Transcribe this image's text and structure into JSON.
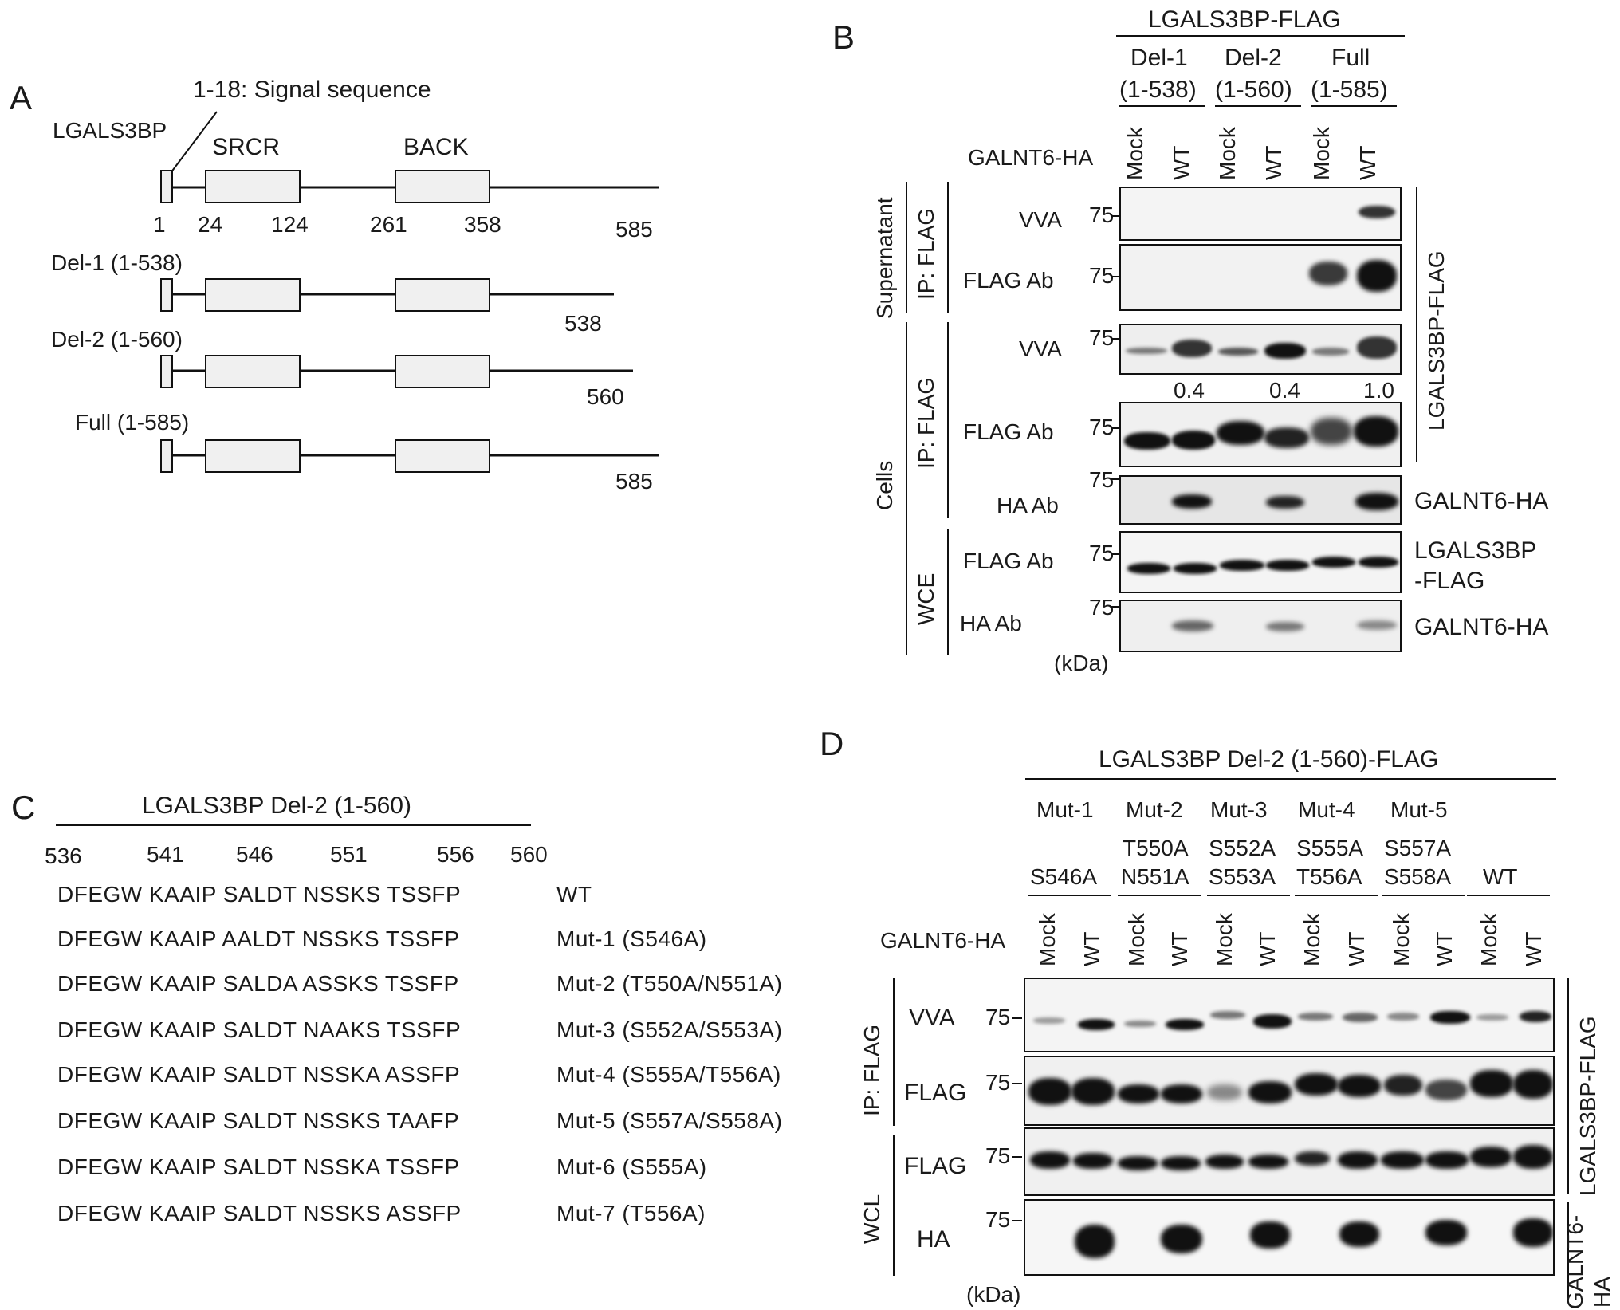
{
  "panelA": {
    "letter": "A",
    "protein": "LGALS3BP",
    "signal": "1-18: Signal sequence",
    "domain1": "SRCR",
    "domain2": "BACK",
    "pos": [
      "1",
      "24",
      "124",
      "261",
      "358",
      "585"
    ],
    "constructs": [
      {
        "label": "Del-1 (1-538)",
        "end": "538"
      },
      {
        "label": "Del-2 (1-560)",
        "end": "560"
      },
      {
        "label": "Full (1-585)",
        "end": "585"
      }
    ]
  },
  "panelB": {
    "letter": "B",
    "header": "LGALS3BP-FLAG",
    "groups": [
      {
        "name": "Del-1",
        "range": "(1-538)"
      },
      {
        "name": "Del-2",
        "range": "(1-560)"
      },
      {
        "name": "Full",
        "range": "(1-585)"
      }
    ],
    "galnt": "GALNT6-HA",
    "lanes": [
      "Mock",
      "WT",
      "Mock",
      "WT",
      "Mock",
      "WT"
    ],
    "supernatant": "Supernatant",
    "cells": "Cells",
    "ip": "IP: FLAG",
    "wce": "WCE",
    "rows": [
      "VVA",
      "FLAG Ab",
      "VVA",
      "FLAG Ab",
      "HA Ab",
      "FLAG Ab",
      "HA Ab"
    ],
    "mw": "75",
    "quant": [
      "0.4",
      "0.4",
      "1.0"
    ],
    "right": {
      "lgals_flag": "LGALS3BP-FLAG",
      "galnt_ha1": "GALNT6-HA",
      "lgals_wce_1": "LGALS3BP",
      "lgals_wce_2": "-FLAG",
      "galnt_ha2": "GALNT6-HA"
    },
    "kda": "(kDa)"
  },
  "panelC": {
    "letter": "C",
    "header": "LGALS3BP Del-2 (1-560)",
    "positions": [
      "536",
      "541",
      "546",
      "551",
      "556",
      "560"
    ],
    "rows": [
      {
        "seq": "DFEGW KAAIP SALDT NSSKS TSSFP",
        "label": "WT"
      },
      {
        "seq": "DFEGW KAAIP AALDT NSSKS TSSFP",
        "label": "Mut-1 (S546A)"
      },
      {
        "seq": "DFEGW KAAIP SALDA ASSKS TSSFP",
        "label": "Mut-2 (T550A/N551A)"
      },
      {
        "seq": "DFEGW KAAIP SALDT NAAKS TSSFP",
        "label": "Mut-3 (S552A/S553A)"
      },
      {
        "seq": "DFEGW KAAIP SALDT NSSKA ASSFP",
        "label": "Mut-4 (S555A/T556A)"
      },
      {
        "seq": "DFEGW KAAIP SALDT NSSKS TAAFP",
        "label": "Mut-5 (S557A/S558A)"
      },
      {
        "seq": "DFEGW KAAIP SALDT NSSKA TSSFP",
        "label": "Mut-6 (S555A)"
      },
      {
        "seq": "DFEGW KAAIP SALDT NSSKS ASSFP",
        "label": "Mut-7 (T556A)"
      }
    ]
  },
  "panelD": {
    "letter": "D",
    "header": "LGALS3BP Del-2 (1-560)-FLAG",
    "muts": [
      {
        "name": "Mut-1",
        "l1": "",
        "l2": "S546A"
      },
      {
        "name": "Mut-2",
        "l1": "T550A",
        "l2": "N551A"
      },
      {
        "name": "Mut-3",
        "l1": "S552A",
        "l2": "S553A"
      },
      {
        "name": "Mut-4",
        "l1": "S555A",
        "l2": "T556A"
      },
      {
        "name": "Mut-5",
        "l1": "S557A",
        "l2": "S558A"
      },
      {
        "name": "",
        "l1": "",
        "l2": "WT"
      }
    ],
    "galnt": "GALNT6-HA",
    "lanes": [
      "Mock",
      "WT",
      "Mock",
      "WT",
      "Mock",
      "WT",
      "Mock",
      "WT",
      "Mock",
      "WT",
      "Mock",
      "WT"
    ],
    "ip": "IP: FLAG",
    "wcl": "WCL",
    "rows": [
      "VVA",
      "FLAG",
      "FLAG",
      "HA"
    ],
    "mw": "75",
    "right1": "LGALS3BP-FLAG",
    "right2a": "GALNT6-",
    "right2b": "HA",
    "kda": "(kDa)"
  }
}
